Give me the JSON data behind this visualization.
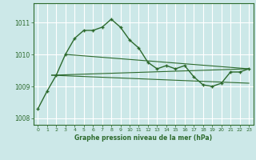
{
  "background_color": "#cce8e8",
  "grid_color": "#b0d8d8",
  "line_color": "#2d6a2d",
  "title": "Graphe pression niveau de la mer (hPa)",
  "xlim": [
    -0.5,
    23.5
  ],
  "ylim": [
    1007.8,
    1011.6
  ],
  "yticks": [
    1008,
    1009,
    1010,
    1011
  ],
  "xticks": [
    0,
    1,
    2,
    3,
    4,
    5,
    6,
    7,
    8,
    9,
    10,
    11,
    12,
    13,
    14,
    15,
    16,
    17,
    18,
    19,
    20,
    21,
    22,
    23
  ],
  "main_line": {
    "x": [
      0,
      1,
      2,
      3,
      4,
      5,
      6,
      7,
      8,
      9,
      10,
      11,
      12,
      13,
      14,
      15,
      16,
      17,
      18,
      19,
      20,
      21,
      22,
      23
    ],
    "y": [
      1008.3,
      1008.85,
      1009.35,
      1010.0,
      1010.5,
      1010.75,
      1010.75,
      1010.85,
      1011.1,
      1010.85,
      1010.45,
      1010.2,
      1009.75,
      1009.55,
      1009.65,
      1009.55,
      1009.65,
      1009.3,
      1009.05,
      1009.0,
      1009.1,
      1009.45,
      1009.45,
      1009.55
    ]
  },
  "trend_line1": {
    "x": [
      1.5,
      23
    ],
    "y": [
      1009.35,
      1009.55
    ]
  },
  "trend_line2": {
    "x": [
      1.5,
      23
    ],
    "y": [
      1009.35,
      1009.1
    ]
  },
  "trend_line3": {
    "x": [
      3,
      23
    ],
    "y": [
      1010.0,
      1009.55
    ]
  }
}
